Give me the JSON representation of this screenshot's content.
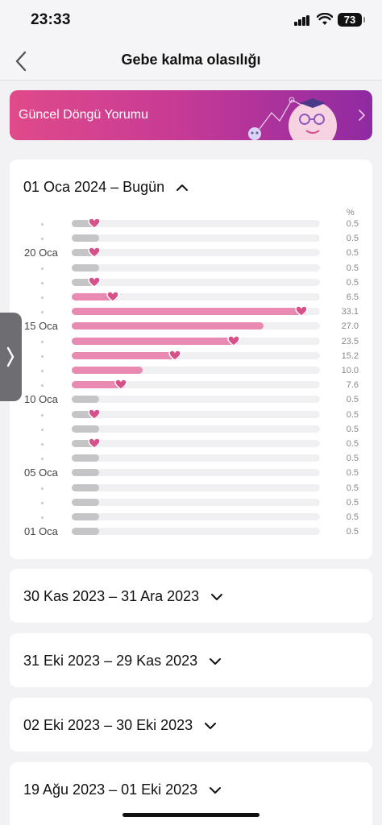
{
  "status_bar": {
    "time": "23:33",
    "battery": "73"
  },
  "nav": {
    "title": "Gebe kalma olasılığı",
    "back_icon": "chevron-left-icon"
  },
  "banner": {
    "label": "Güncel Döngü Yorumu",
    "chevron_icon": "chevron-right-icon"
  },
  "current_period": {
    "header": "01 Oca 2024 – Bugün",
    "expanded": true,
    "chart_data": {
      "type": "bar",
      "orientation": "horizontal",
      "unit_label": "%",
      "x_range": [
        0,
        35
      ],
      "rows": [
        {
          "label": "",
          "value": "0.5",
          "v": 0.5,
          "heart": true
        },
        {
          "label": "",
          "value": "0.5",
          "v": 0.5,
          "heart": false
        },
        {
          "label": "20 Oca",
          "value": "0.5",
          "v": 0.5,
          "heart": true
        },
        {
          "label": "",
          "value": "0.5",
          "v": 0.5,
          "heart": false
        },
        {
          "label": "",
          "value": "0.5",
          "v": 0.5,
          "heart": true
        },
        {
          "label": "",
          "value": "6.5",
          "v": 6.5,
          "heart": true
        },
        {
          "label": "",
          "value": "33.1",
          "v": 33.1,
          "heart": true
        },
        {
          "label": "15 Oca",
          "value": "27.0",
          "v": 27.0,
          "heart": false
        },
        {
          "label": "",
          "value": "23.5",
          "v": 23.5,
          "heart": true
        },
        {
          "label": "",
          "value": "15.2",
          "v": 15.2,
          "heart": true
        },
        {
          "label": "",
          "value": "10.0",
          "v": 10.0,
          "heart": false
        },
        {
          "label": "",
          "value": "7.6",
          "v": 7.6,
          "heart": true
        },
        {
          "label": "10 Oca",
          "value": "0.5",
          "v": 0.5,
          "heart": false
        },
        {
          "label": "",
          "value": "0.5",
          "v": 0.5,
          "heart": true
        },
        {
          "label": "",
          "value": "0.5",
          "v": 0.5,
          "heart": false
        },
        {
          "label": "",
          "value": "0.5",
          "v": 0.5,
          "heart": true
        },
        {
          "label": "",
          "value": "0.5",
          "v": 0.5,
          "heart": false
        },
        {
          "label": "05 Oca",
          "value": "0.5",
          "v": 0.5,
          "heart": false
        },
        {
          "label": "",
          "value": "0.5",
          "v": 0.5,
          "heart": false
        },
        {
          "label": "",
          "value": "0.5",
          "v": 0.5,
          "heart": false
        },
        {
          "label": "",
          "value": "0.5",
          "v": 0.5,
          "heart": false
        },
        {
          "label": "01 Oca",
          "value": "0.5",
          "v": 0.5,
          "heart": false
        }
      ]
    }
  },
  "past_periods": [
    {
      "header": "30 Kas 2023 – 31 Ara 2023"
    },
    {
      "header": "31 Eki 2023 – 29 Kas 2023"
    },
    {
      "header": "02 Eki 2023 – 30 Eki 2023"
    },
    {
      "header": "19 Ağu 2023 – 01 Eki 2023"
    }
  ],
  "colors": {
    "accent": "#e98ab2",
    "heart": "#d6508a",
    "low_bar": "#c5c5c7"
  }
}
